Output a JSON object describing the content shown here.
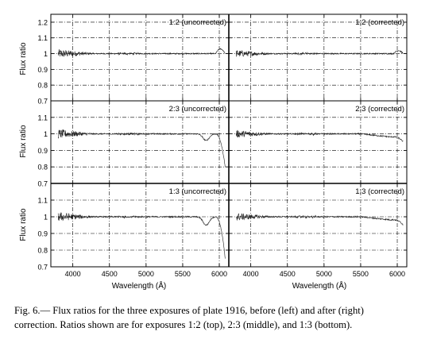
{
  "figure": {
    "caption_line1": "Fig.  6.— Flux ratios for the three exposures of plate 1916, before (left) and after (right)",
    "caption_line2": "correction. Ratios shown are for exposures 1:2 (top), 2:3 (middle), and 1:3 (bottom)."
  },
  "chart_data": {
    "type": "line",
    "xlabel": "Wavelength (Å)",
    "ylabel": "Flux ratio",
    "xlim": [
      3700,
      6130
    ],
    "xticks": [
      4000,
      4500,
      5000,
      5500,
      6000
    ],
    "grid": true,
    "panels": [
      {
        "label": "1:2 (uncorrected)",
        "row": 0,
        "col": 0,
        "ylim": [
          0.7,
          1.25
        ],
        "yticks": [
          0.7,
          0.8,
          0.9,
          1,
          1.1,
          1.2
        ],
        "corrected": false,
        "dip": 0.0,
        "lowtail": 0.0,
        "edge": 0.03
      },
      {
        "label": "1:2 (corrected)",
        "row": 0,
        "col": 1,
        "ylim": [
          0.7,
          1.25
        ],
        "yticks": [
          0.7,
          0.8,
          0.9,
          1,
          1.1,
          1.2
        ],
        "corrected": true,
        "dip": 0.0,
        "lowtail": 0.0,
        "edge": 0.02
      },
      {
        "label": "2:3 (uncorrected)",
        "row": 1,
        "col": 0,
        "ylim": [
          0.7,
          1.2
        ],
        "yticks": [
          0.7,
          0.8,
          0.9,
          1,
          1.1
        ],
        "corrected": false,
        "dip": 0.04,
        "lowtail": 0.2,
        "edge": 0.0
      },
      {
        "label": "2:3 (corrected)",
        "row": 1,
        "col": 1,
        "ylim": [
          0.7,
          1.2
        ],
        "yticks": [
          0.7,
          0.8,
          0.9,
          1,
          1.1
        ],
        "corrected": true,
        "dip": 0.0,
        "lowtail": 0.03,
        "edge": 0.0
      },
      {
        "label": "1:3 (uncorrected)",
        "row": 2,
        "col": 0,
        "ylim": [
          0.7,
          1.2
        ],
        "yticks": [
          0.7,
          0.8,
          0.9,
          1,
          1.1
        ],
        "corrected": false,
        "dip": 0.05,
        "lowtail": 0.25,
        "edge": 0.0
      },
      {
        "label": "1:3 (corrected)",
        "row": 2,
        "col": 1,
        "ylim": [
          0.7,
          1.2
        ],
        "yticks": [
          0.7,
          0.8,
          0.9,
          1,
          1.1
        ],
        "corrected": true,
        "dip": 0.0,
        "lowtail": 0.03,
        "edge": 0.0
      }
    ],
    "series_color": "#222222"
  }
}
